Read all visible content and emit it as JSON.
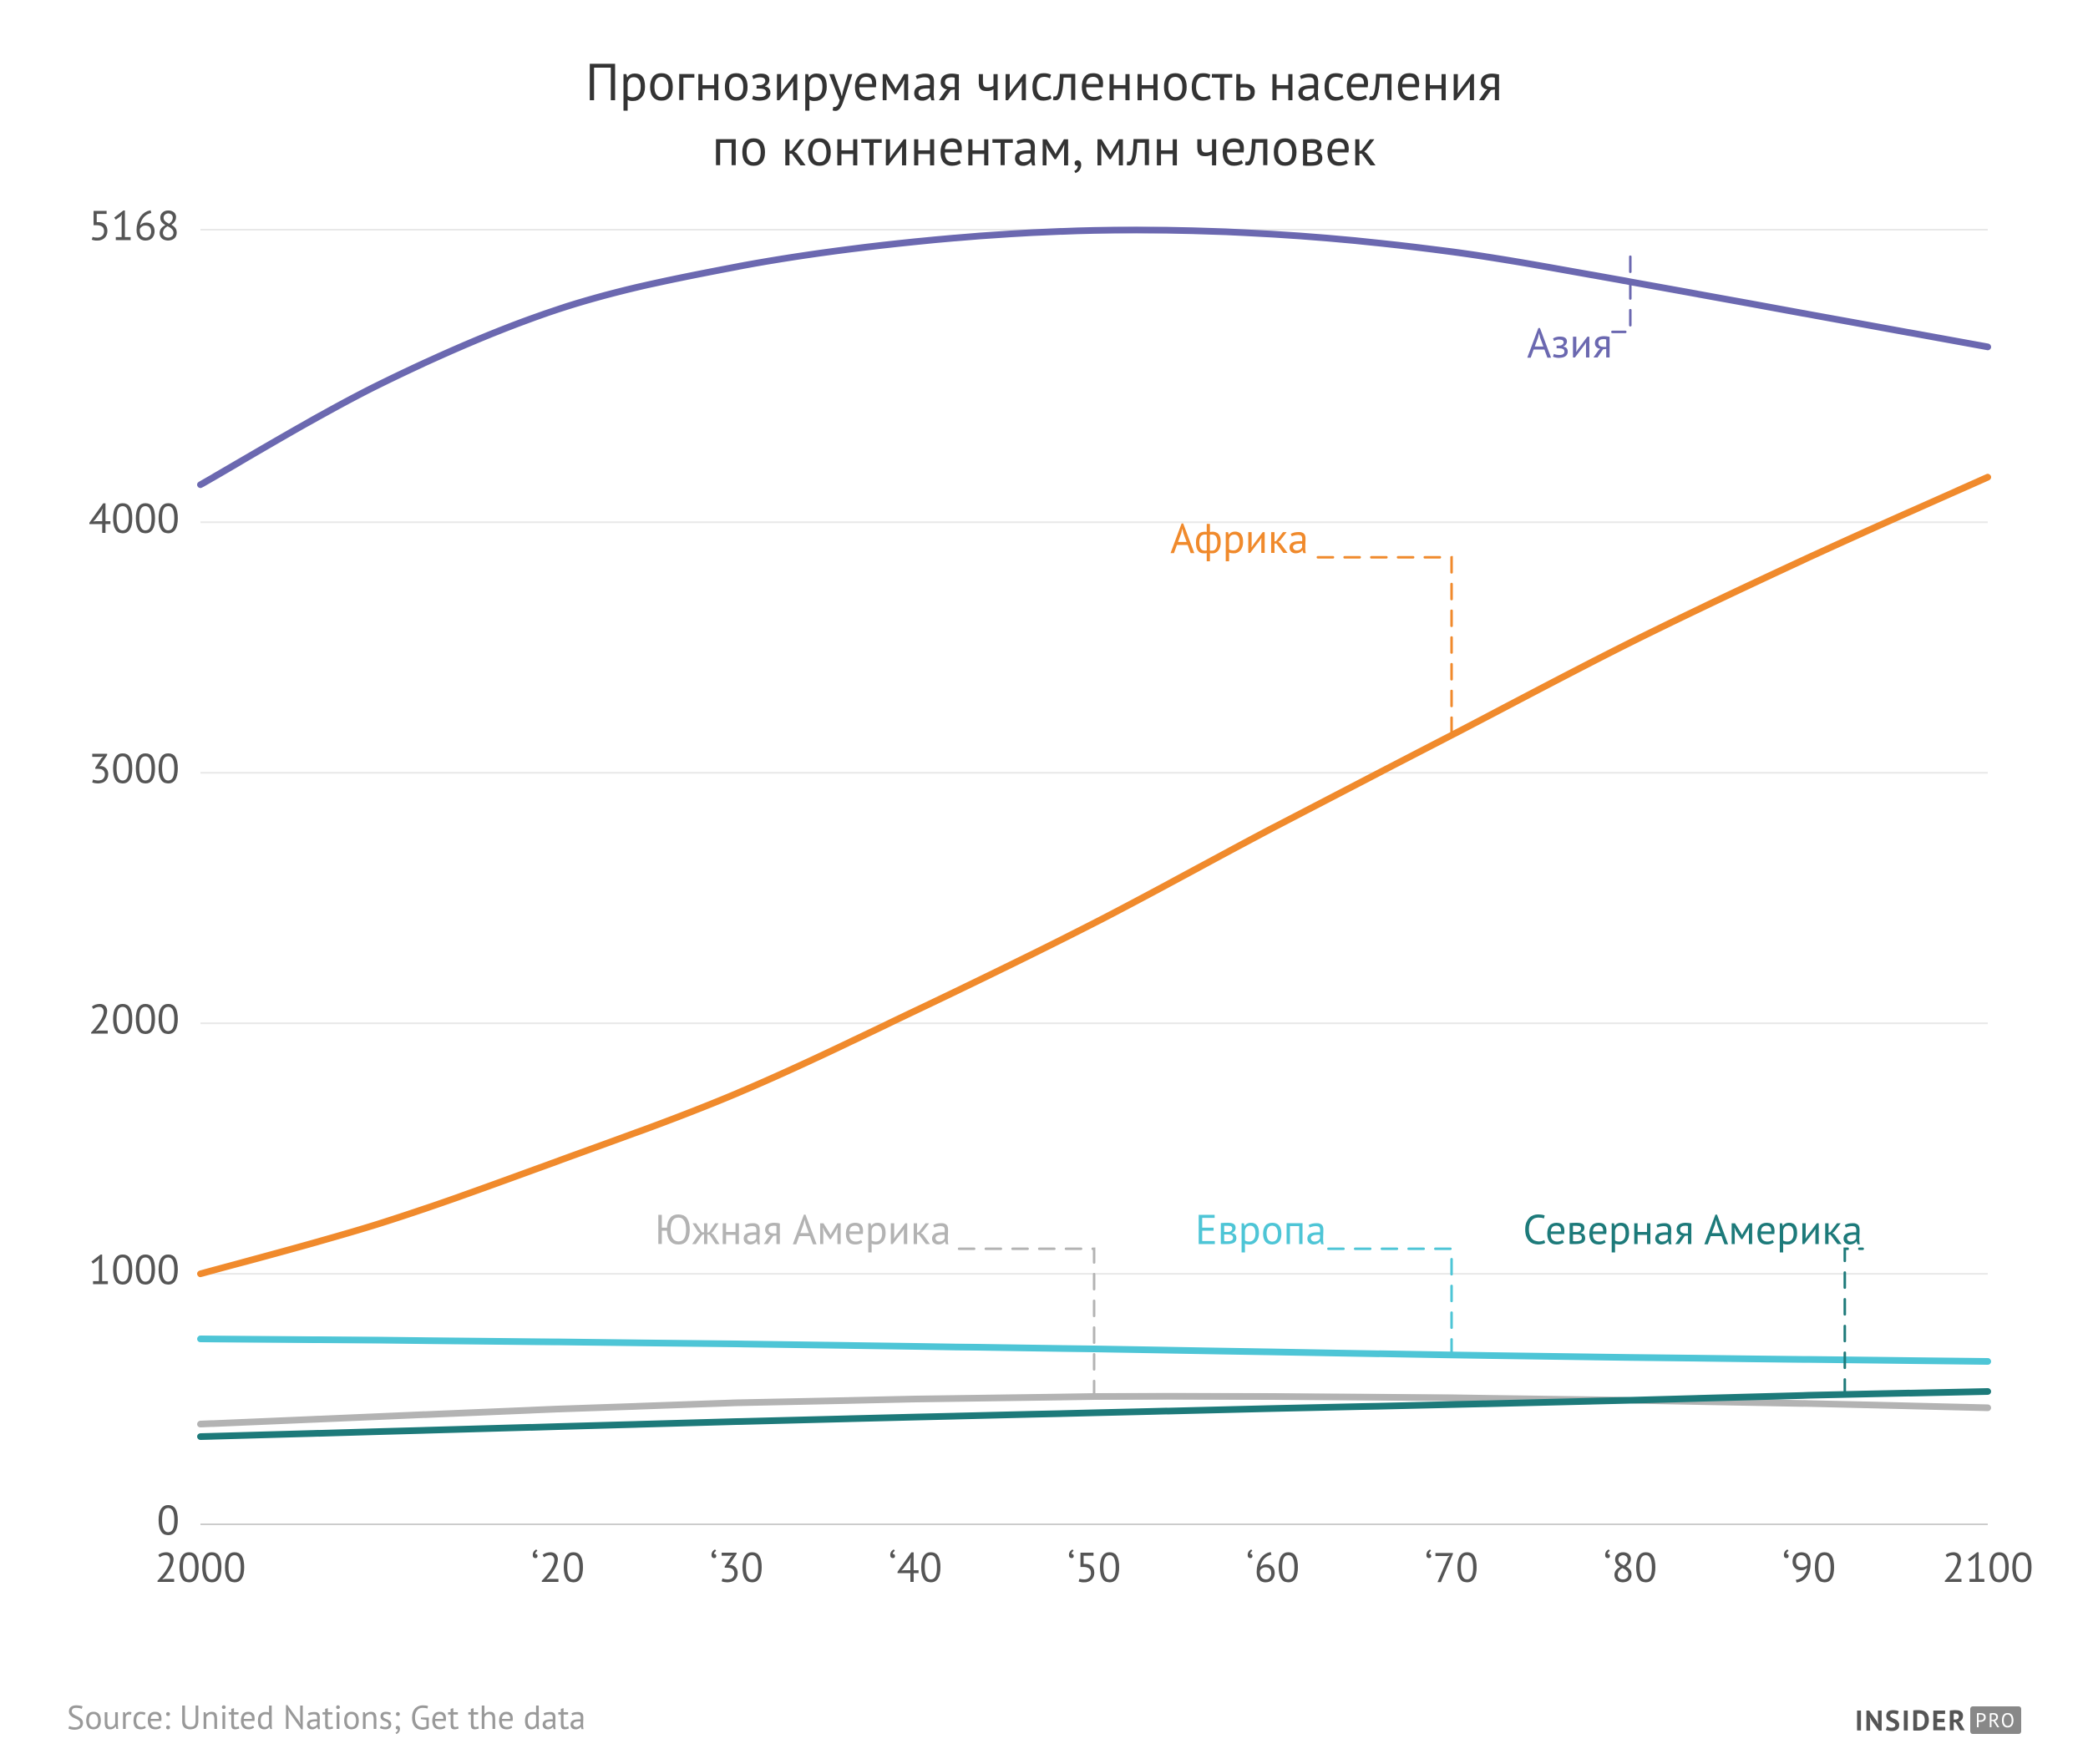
{
  "title_line1": "Прогнозируемая численность населения",
  "title_line2": "по континентам, млн человек",
  "source": "Source: United Nations; Get the data",
  "brand_main": "INSIDER",
  "brand_suffix": "PRO",
  "chart": {
    "type": "line",
    "background_color": "#ffffff",
    "grid_color": "#e8e8e8",
    "axis_color": "#cccccc",
    "tick_font_size": 50,
    "tick_color": "#555555",
    "xlim": [
      2000,
      2100
    ],
    "ylim": [
      0,
      5168
    ],
    "x_ticks": [
      {
        "v": 2000,
        "label": "2000"
      },
      {
        "v": 2020,
        "label": "‘20"
      },
      {
        "v": 2030,
        "label": "‘30"
      },
      {
        "v": 2040,
        "label": "‘40"
      },
      {
        "v": 2050,
        "label": "‘50"
      },
      {
        "v": 2060,
        "label": "‘60"
      },
      {
        "v": 2070,
        "label": "‘70"
      },
      {
        "v": 2080,
        "label": "‘80"
      },
      {
        "v": 2090,
        "label": "‘90"
      },
      {
        "v": 2100,
        "label": "2100"
      }
    ],
    "y_ticks": [
      {
        "v": 0,
        "label": "0"
      },
      {
        "v": 1000,
        "label": "1000"
      },
      {
        "v": 2000,
        "label": "2000"
      },
      {
        "v": 3000,
        "label": "3000"
      },
      {
        "v": 4000,
        "label": "4000"
      },
      {
        "v": 5168,
        "label": "5168"
      }
    ],
    "line_width": 8,
    "callout_dash": "18 14",
    "callout_width": 3,
    "label_font_size": 50,
    "series": [
      {
        "name": "asia",
        "label": "Азия",
        "color": "#6b68b0",
        "x": [
          2000,
          2010,
          2020,
          2030,
          2040,
          2050,
          2060,
          2070,
          2080,
          2090,
          2100
        ],
        "y": [
          4150,
          4550,
          4850,
          5020,
          5120,
          5165,
          5150,
          5080,
          4960,
          4830,
          4700
        ],
        "callout_from_x": 2080,
        "callout_from_y": 5060,
        "label_x": 2079,
        "label_y": 4700,
        "label_anchor": "end"
      },
      {
        "name": "africa",
        "label": "Африка",
        "color": "#f08a2c",
        "x": [
          2000,
          2010,
          2020,
          2030,
          2040,
          2050,
          2060,
          2070,
          2080,
          2090,
          2100
        ],
        "y": [
          1000,
          1200,
          1450,
          1720,
          2050,
          2400,
          2780,
          3150,
          3520,
          3860,
          4180
        ],
        "callout_from_x": 2070,
        "callout_from_y": 3160,
        "label_x": 2062,
        "label_y": 3920,
        "label_anchor": "end"
      },
      {
        "name": "europe",
        "label": "Европа",
        "color": "#4ec5d6",
        "x": [
          2000,
          2010,
          2020,
          2030,
          2040,
          2050,
          2060,
          2070,
          2080,
          2090,
          2100
        ],
        "y": [
          740,
          735,
          728,
          720,
          710,
          700,
          688,
          676,
          666,
          658,
          650
        ],
        "callout_from_x": 2070,
        "callout_from_y": 678,
        "label_x": 2063,
        "label_y": 1160,
        "label_anchor": "end"
      },
      {
        "name": "south-america",
        "label": "Южная Америка",
        "color": "#b3b3b3",
        "x": [
          2000,
          2010,
          2020,
          2030,
          2040,
          2050,
          2060,
          2070,
          2080,
          2090,
          2100
        ],
        "y": [
          400,
          430,
          460,
          485,
          500,
          510,
          510,
          505,
          495,
          482,
          465
        ],
        "callout_from_x": 2050,
        "callout_from_y": 512,
        "label_x": 2042,
        "label_y": 1160,
        "label_anchor": "end"
      },
      {
        "name": "north-america",
        "label": "Северная Америка",
        "color": "#1d7a7a",
        "x": [
          2000,
          2010,
          2020,
          2030,
          2040,
          2050,
          2060,
          2070,
          2080,
          2090,
          2100
        ],
        "y": [
          350,
          370,
          390,
          410,
          428,
          445,
          462,
          478,
          495,
          515,
          530
        ],
        "callout_from_x": 2092,
        "callout_from_y": 518,
        "label_x": 2093,
        "label_y": 1160,
        "label_anchor": "end"
      }
    ]
  }
}
